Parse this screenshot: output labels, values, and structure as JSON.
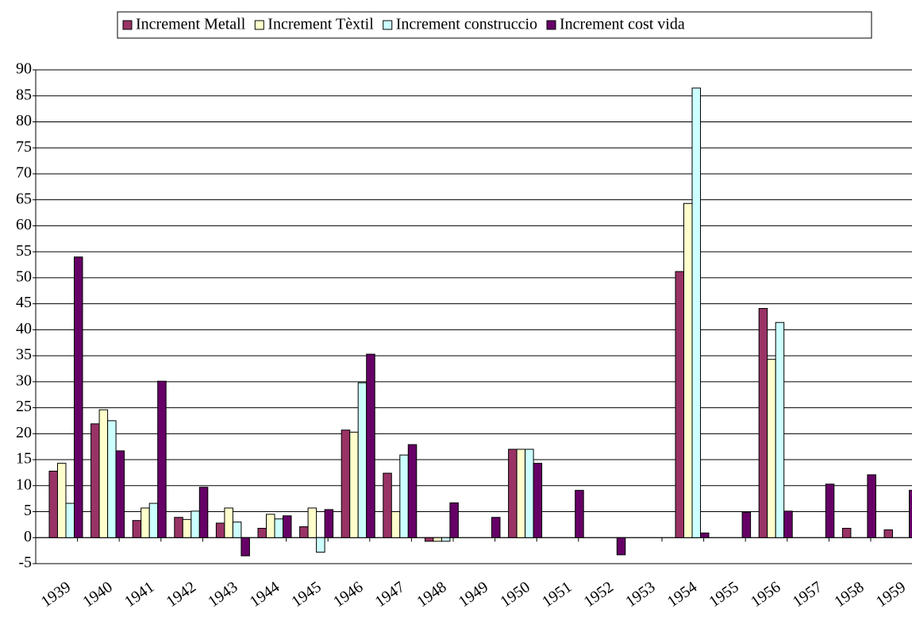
{
  "chart_data": {
    "type": "bar",
    "categories": [
      "1939",
      "1940",
      "1941",
      "1942",
      "1943",
      "1944",
      "1945",
      "1946",
      "1947",
      "1948",
      "1949",
      "1950",
      "1951",
      "1952",
      "1953",
      "1954",
      "1955",
      "1956",
      "1957",
      "1958",
      "1959"
    ],
    "series": [
      {
        "name": "Increment Metall",
        "color": "#993366",
        "values": [
          12.8,
          21.9,
          3.3,
          3.9,
          2.8,
          1.8,
          2.1,
          20.7,
          12.4,
          -0.7,
          null,
          17,
          null,
          null,
          null,
          51.2,
          null,
          44.1,
          null,
          1.8,
          1.5
        ]
      },
      {
        "name": "Increment Tèxtil",
        "color": "#ffffcc",
        "values": [
          14.3,
          24.6,
          5.7,
          3.5,
          5.7,
          4.5,
          5.7,
          20.3,
          5.0,
          -0.7,
          null,
          17,
          null,
          null,
          null,
          64.3,
          null,
          34.3,
          null,
          null,
          null
        ]
      },
      {
        "name": "Increment construccio",
        "color": "#ccffff",
        "values": [
          6.6,
          22.5,
          6.6,
          5.1,
          3.0,
          3.6,
          -2.8,
          29.8,
          15.9,
          -0.7,
          null,
          17,
          null,
          null,
          null,
          86.5,
          null,
          41.4,
          null,
          null,
          null
        ]
      },
      {
        "name": "Increment cost vida",
        "color": "#660066",
        "values": [
          54,
          16.7,
          30.1,
          9.7,
          -3.5,
          4.2,
          5.4,
          35.3,
          17.9,
          6.7,
          3.9,
          14.3,
          9.1,
          -3.3,
          null,
          0.9,
          4.9,
          5.1,
          10.3,
          12.1,
          9.1
        ]
      }
    ],
    "ylim": [
      -5,
      90
    ],
    "yticks": [
      -5,
      0,
      5,
      10,
      15,
      20,
      25,
      30,
      35,
      40,
      45,
      50,
      55,
      60,
      65,
      70,
      75,
      80,
      85,
      90
    ],
    "grid": true,
    "legend": "top"
  }
}
